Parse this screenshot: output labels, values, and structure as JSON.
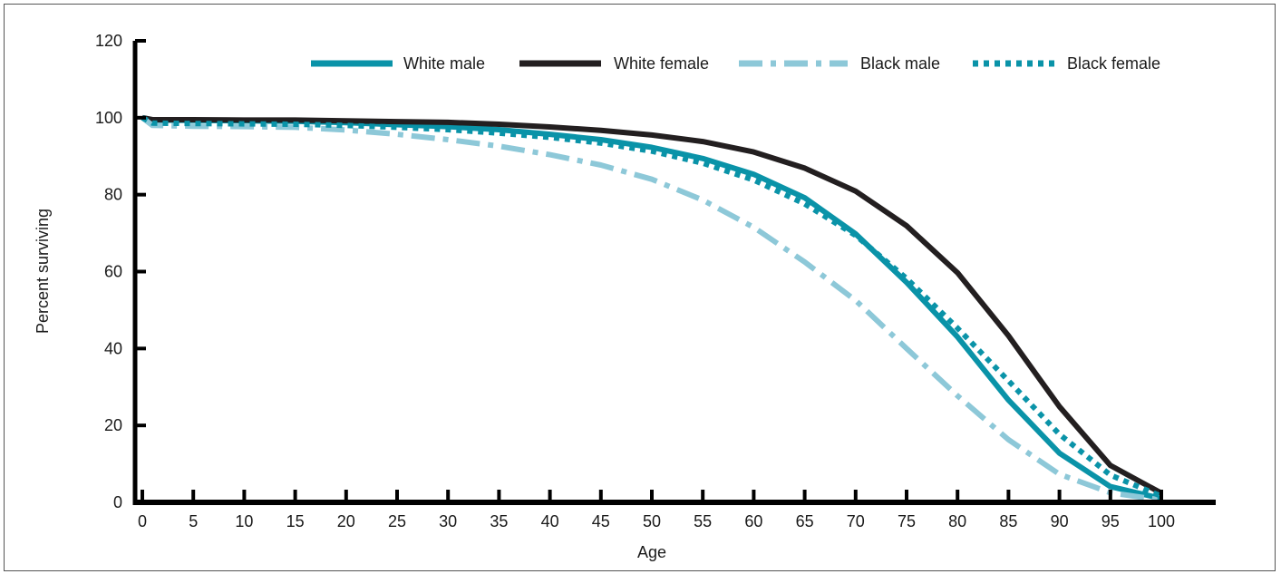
{
  "chart_data": {
    "type": "line",
    "xlabel": "Age",
    "ylabel": "Percent surviving",
    "xlim": [
      0,
      100
    ],
    "ylim": [
      0,
      120
    ],
    "xticks": [
      0,
      5,
      10,
      15,
      20,
      25,
      30,
      35,
      40,
      45,
      50,
      55,
      60,
      65,
      70,
      75,
      80,
      85,
      90,
      95,
      100
    ],
    "yticks": [
      0,
      20,
      40,
      60,
      80,
      100,
      120
    ],
    "grid": false,
    "legend_position": "top",
    "x": [
      0,
      1,
      5,
      10,
      15,
      20,
      25,
      30,
      35,
      40,
      45,
      50,
      55,
      60,
      65,
      70,
      75,
      80,
      85,
      90,
      95,
      100
    ],
    "series": [
      {
        "name": "White male",
        "color": "#0a93a8",
        "style": "solid",
        "values": [
          100,
          99.4,
          99.3,
          99.2,
          99.1,
          98.7,
          98.2,
          97.7,
          96.9,
          95.7,
          94.3,
          92.3,
          89.4,
          85.3,
          79.2,
          69.8,
          57.2,
          43.0,
          26.6,
          12.8,
          4.1,
          1.0
        ]
      },
      {
        "name": "White female",
        "color": "#231f20",
        "style": "solid",
        "values": [
          100,
          99.5,
          99.5,
          99.4,
          99.4,
          99.2,
          99.0,
          98.8,
          98.3,
          97.6,
          96.7,
          95.5,
          93.8,
          91.1,
          86.9,
          80.9,
          71.9,
          59.7,
          43.3,
          24.9,
          9.6,
          2.4
        ]
      },
      {
        "name": "Black male",
        "color": "#8dc8d8",
        "style": "dashdot",
        "values": [
          100,
          98.0,
          97.8,
          97.7,
          97.5,
          96.8,
          95.7,
          94.3,
          92.6,
          90.4,
          87.7,
          84.0,
          78.6,
          71.5,
          62.5,
          52.5,
          40.0,
          27.7,
          16.3,
          7.3,
          2.5,
          0.6
        ]
      },
      {
        "name": "Black female",
        "color": "#0a93a8",
        "style": "dotted",
        "values": [
          100,
          98.6,
          98.5,
          98.4,
          98.3,
          98.0,
          97.5,
          96.9,
          96.0,
          94.9,
          93.4,
          91.3,
          88.2,
          83.8,
          77.6,
          69.4,
          58.2,
          45.3,
          31.6,
          17.7,
          7.1,
          1.6
        ]
      }
    ]
  }
}
